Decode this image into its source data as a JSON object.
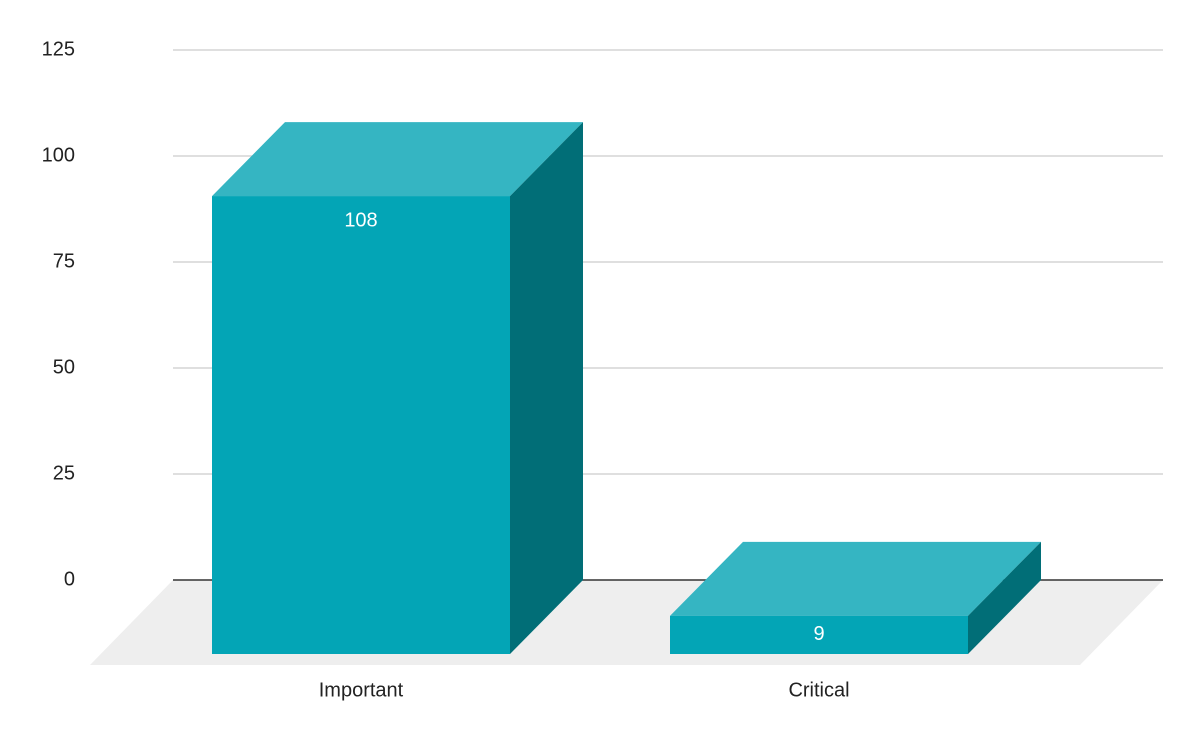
{
  "chart_data": {
    "type": "bar3d",
    "categories": [
      "Important",
      "Critical"
    ],
    "values": [
      108,
      9
    ],
    "colors": {
      "front": "#03a5b6",
      "top": "#35b5c2",
      "side": "#016e77"
    },
    "ylim": [
      0,
      125
    ],
    "yticks": [
      0,
      25,
      50,
      75,
      100,
      125
    ],
    "grid": true
  }
}
